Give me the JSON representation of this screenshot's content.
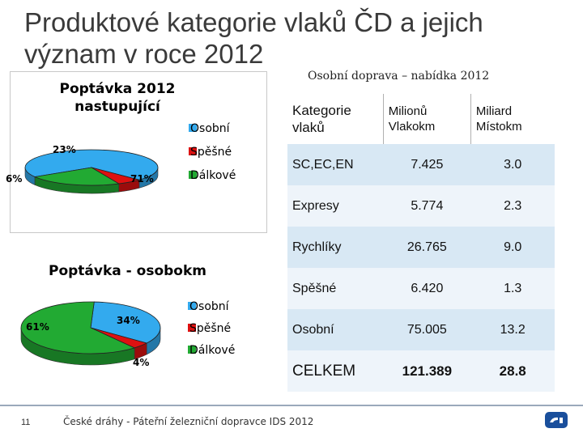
{
  "slide": {
    "title": "Produktové kategorie vlaků ČD a jejich význam v roce 2012",
    "caption": "Osobní doprava – nabídka 2012",
    "page_number": "11",
    "footer_text": "České dráhy - Páteřní železniční dopravce IDS 2012",
    "logo_name": "cd-logo-icon"
  },
  "table": {
    "headers": [
      "Kategorie vlaků",
      "Milionů Vlakokm",
      "Miliard Místokm"
    ],
    "rows": [
      [
        "SC,EC,EN",
        "7.425",
        "3.0"
      ],
      [
        "Expresy",
        "5.774",
        "2.3"
      ],
      [
        "Rychlíky",
        "26.765",
        "9.0"
      ],
      [
        "Spěšné",
        "6.420",
        "1.3"
      ],
      [
        "Osobní",
        "75.005",
        "13.2"
      ],
      [
        "CELKEM",
        "121.389",
        "28.8"
      ]
    ]
  },
  "chart_data": [
    {
      "type": "pie",
      "title": "Poptávka 2012 nastupující",
      "title_lines": [
        "Poptávka 2012",
        "nastupující"
      ],
      "categories": [
        "Osobní",
        "Spěšné",
        "Dálkové"
      ],
      "values": [
        71,
        6,
        23
      ],
      "data_labels": [
        "71%",
        "6%",
        "23%"
      ],
      "colors": [
        "#33aaee",
        "#dd1111",
        "#22aa33"
      ],
      "legend": "right",
      "style": "3d"
    },
    {
      "type": "pie",
      "title": "Poptávka - osobokm",
      "title_lines": [
        "Poptávka - osobokm"
      ],
      "categories": [
        "Osobní",
        "Spěšné",
        "Dálkové"
      ],
      "values": [
        34,
        4,
        61
      ],
      "data_labels": [
        "34%",
        "4%",
        "61%"
      ],
      "colors": [
        "#33aaee",
        "#dd1111",
        "#22aa33"
      ],
      "legend": "right",
      "style": "3d"
    }
  ]
}
